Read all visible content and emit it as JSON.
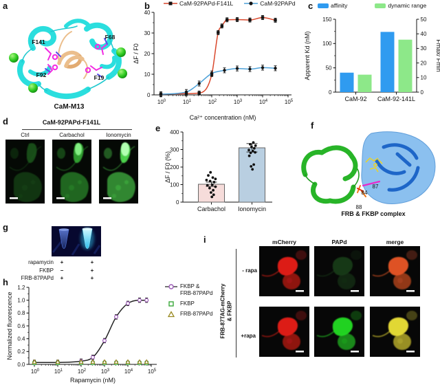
{
  "panels": {
    "a": {
      "letter": "a",
      "caption": "CaM-M13",
      "residues": {
        "f141": "F141",
        "f68": "F68",
        "f92": "F92",
        "f19": "F19"
      }
    },
    "b": {
      "letter": "b"
    },
    "c": {
      "letter": "c"
    },
    "d": {
      "letter": "d",
      "title": "CaM-92PAPd-F141L",
      "cols": {
        "c0": "Ctrl",
        "c1": "Carbachol",
        "c2": "Ionomycin"
      }
    },
    "e": {
      "letter": "e"
    },
    "f": {
      "letter": "f",
      "caption": "FRB & FKBP complex",
      "residues": {
        "r87": "87",
        "r84": "84",
        "r88": "88"
      }
    },
    "g": {
      "letter": "g",
      "rows": [
        {
          "label": "rapamycin",
          "v1": "+",
          "v2": "+"
        },
        {
          "label": "FKBP",
          "v1": "−",
          "v2": "+"
        },
        {
          "label": "FRB-87PAPd",
          "v1": "+",
          "v2": "+"
        }
      ]
    },
    "h": {
      "letter": "h"
    },
    "i": {
      "letter": "i",
      "cols": {
        "c0": "mCherry",
        "c1": "PAPd",
        "c2": "merge"
      },
      "rows": {
        "r0": "- rapa",
        "r1": "+rapa"
      },
      "side1": "FRB-87TAG-mCherry",
      "side2": "& FKBP"
    }
  },
  "chart_data": [
    {
      "id": "b",
      "type": "line",
      "legend_position": "top",
      "xlabel": "Ca²⁺ concentration (nM)",
      "ylabel": "ΔF / F0",
      "xscale": "log",
      "xlim": [
        1,
        100000
      ],
      "ylim": [
        0,
        40
      ],
      "yticks": [
        0,
        10,
        20,
        30,
        40
      ],
      "ytick_labels": [
        "0",
        "10",
        "20",
        "30",
        "40"
      ],
      "yminor": 5,
      "m": [
        32,
        8,
        8,
        40
      ],
      "padl": 10,
      "padr": 5,
      "series": [
        {
          "name": "CaM-92PAPd-F141L",
          "line_color": "#d9472b",
          "marker": "square",
          "marker_color": "#141414",
          "err": 1.0,
          "x": [
            1,
            10,
            32,
            100,
            178,
            251,
            398,
            1000,
            3162,
            10000,
            31623
          ],
          "y": [
            0.3,
            0.6,
            0.9,
            9.9,
            30.2,
            33.4,
            36.4,
            36.5,
            36.3,
            37.5,
            36.2
          ]
        },
        {
          "name": "CaM-92PAPd",
          "line_color": "#4da1d8",
          "marker": "circle",
          "marker_color": "#141414",
          "err": 1.2,
          "x": [
            1,
            10,
            32,
            100,
            316,
            1000,
            3162,
            10000,
            31623
          ],
          "y": [
            0.3,
            1.4,
            5.5,
            10.4,
            11.9,
            12.8,
            12.5,
            13.2,
            12.9
          ]
        }
      ]
    },
    {
      "id": "c",
      "type": "bar-dual",
      "m": [
        50,
        14,
        34,
        32
      ],
      "categories": [
        "CaM-92",
        "CaM-92-141L"
      ],
      "left_axis": {
        "label": "Apparent Kd (nM)",
        "lim": [
          0,
          150
        ],
        "ticks": [
          0,
          50,
          100,
          150
        ],
        "minor": 25
      },
      "right_axis": {
        "label": "Fmax/ Fmin",
        "lim": [
          0,
          50
        ],
        "ticks": [
          0,
          10,
          20,
          30,
          40,
          50
        ],
        "minor": 10
      },
      "series": [
        {
          "name": "affinity",
          "axis": "left",
          "color": "#2f9bf0",
          "values": [
            40,
            124
          ]
        },
        {
          "name": "dynamic range",
          "axis": "right",
          "color": "#8de889",
          "values": [
            12,
            36
          ]
        }
      ]
    },
    {
      "id": "e",
      "type": "bar-scatter",
      "m": [
        28,
        8,
        2,
        22
      ],
      "padl": 12,
      "ylabel": "ΔF / F0 (%)",
      "ylim": [
        0,
        400
      ],
      "yticks": [
        0,
        100,
        200,
        300,
        400
      ],
      "ytick_labels": [
        "0",
        "100",
        "200",
        "300",
        "400"
      ],
      "yminor": 50,
      "categories": [
        "Carbachol",
        "Ionomycin"
      ],
      "bars": [
        {
          "value": 102,
          "err": 12,
          "fill": "#f6dcda",
          "edge": "#666"
        },
        {
          "value": 310,
          "err": 24,
          "fill": "#b9cfe1",
          "edge": "#666"
        }
      ],
      "points": [
        [
          [
            -0.1,
            170
          ],
          [
            -0.35,
            152
          ],
          [
            0.15,
            140
          ],
          [
            0.45,
            132
          ],
          [
            -0.55,
            126
          ],
          [
            -0.15,
            120
          ],
          [
            0.3,
            114
          ],
          [
            -0.45,
            96
          ],
          [
            0.1,
            99
          ],
          [
            0.45,
            88
          ],
          [
            -0.2,
            80
          ],
          [
            0.2,
            68
          ],
          [
            -0.05,
            55
          ],
          [
            0.25,
            42
          ],
          [
            0.05,
            30
          ]
        ],
        [
          [
            0.15,
            340
          ],
          [
            -0.2,
            330
          ],
          [
            0.4,
            322
          ],
          [
            -0.05,
            315
          ],
          [
            0.25,
            307
          ],
          [
            -0.35,
            297
          ],
          [
            0.1,
            291
          ],
          [
            0.35,
            284
          ],
          [
            -0.15,
            281
          ],
          [
            -0.3,
            264
          ],
          [
            0.2,
            214
          ],
          [
            -0.1,
            204
          ],
          [
            0.05,
            187
          ]
        ]
      ]
    },
    {
      "id": "h",
      "type": "line",
      "legend_position": "right",
      "xlabel": "Rapamycin (nM)",
      "ylabel": "Normalized fluorescence",
      "xscale": "log",
      "xlim": [
        1,
        100000
      ],
      "ylim": [
        0,
        1.2
      ],
      "yticks": [
        0,
        0.2,
        0.4,
        0.6,
        0.8,
        1.0,
        1.2
      ],
      "ytick_labels": [
        "0.0",
        "0.2",
        "0.4",
        "0.6",
        "0.8",
        "1.0",
        "1.2"
      ],
      "yminor": 0.1,
      "m": [
        34,
        8,
        10,
        30
      ],
      "padl": 8,
      "padr": 8,
      "series": [
        {
          "name": "FKBP & FRB-87PAPd",
          "legend1": "FKBP  &",
          "legend2": "FRB-87PAPd",
          "line_color": "#222222",
          "marker": "circle-open",
          "marker_color": "#9b59b6",
          "err": 0.035,
          "x": [
            1,
            10,
            100,
            316,
            1000,
            3162,
            10000,
            31623,
            63096
          ],
          "y": [
            0.03,
            0.03,
            0.05,
            0.11,
            0.37,
            0.74,
            0.95,
            1.0,
            1.0
          ]
        },
        {
          "name": "FKBP",
          "line_color": "none",
          "marker": "square-open",
          "marker_color": "#3aa83a",
          "err": 0.012,
          "x": [
            1,
            10,
            100,
            316,
            1000,
            3162,
            10000,
            31623,
            63096
          ],
          "y": [
            0.02,
            0.02,
            0.02,
            0.02,
            0.02,
            0.02,
            0.02,
            0.02,
            0.02
          ]
        },
        {
          "name": "FRB-87PAPd",
          "line_color": "none",
          "marker": "triangle-open",
          "marker_color": "#9a8a22",
          "err": 0.012,
          "x": [
            1,
            10,
            100,
            316,
            1000,
            3162,
            10000,
            31623,
            63096
          ],
          "y": [
            0.04,
            0.04,
            0.04,
            0.04,
            0.04,
            0.04,
            0.04,
            0.04,
            0.04
          ]
        }
      ]
    }
  ]
}
